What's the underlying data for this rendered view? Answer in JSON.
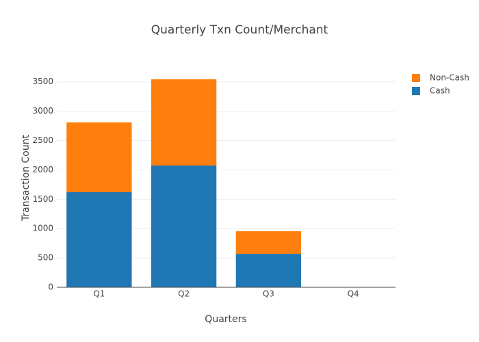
{
  "chart_data": {
    "type": "stacked_bar",
    "title": "Quarterly Txn Count/Merchant",
    "x_label": "Quarters",
    "y_label": "Transaction Count",
    "categories": [
      "Q1",
      "Q2",
      "Q3",
      "Q4"
    ],
    "series": [
      {
        "name": "Cash",
        "color": "#1f77b4",
        "values": [
          1620,
          2075,
          570,
          0
        ]
      },
      {
        "name": "Non-Cash",
        "color": "#ff7f0e",
        "values": [
          1190,
          1470,
          385,
          0
        ]
      }
    ],
    "ylim": [
      0,
      3730
    ],
    "yticks": [
      0,
      500,
      1000,
      1500,
      2000,
      2500,
      3000,
      3500
    ],
    "grid": true,
    "legend": "top-right"
  }
}
